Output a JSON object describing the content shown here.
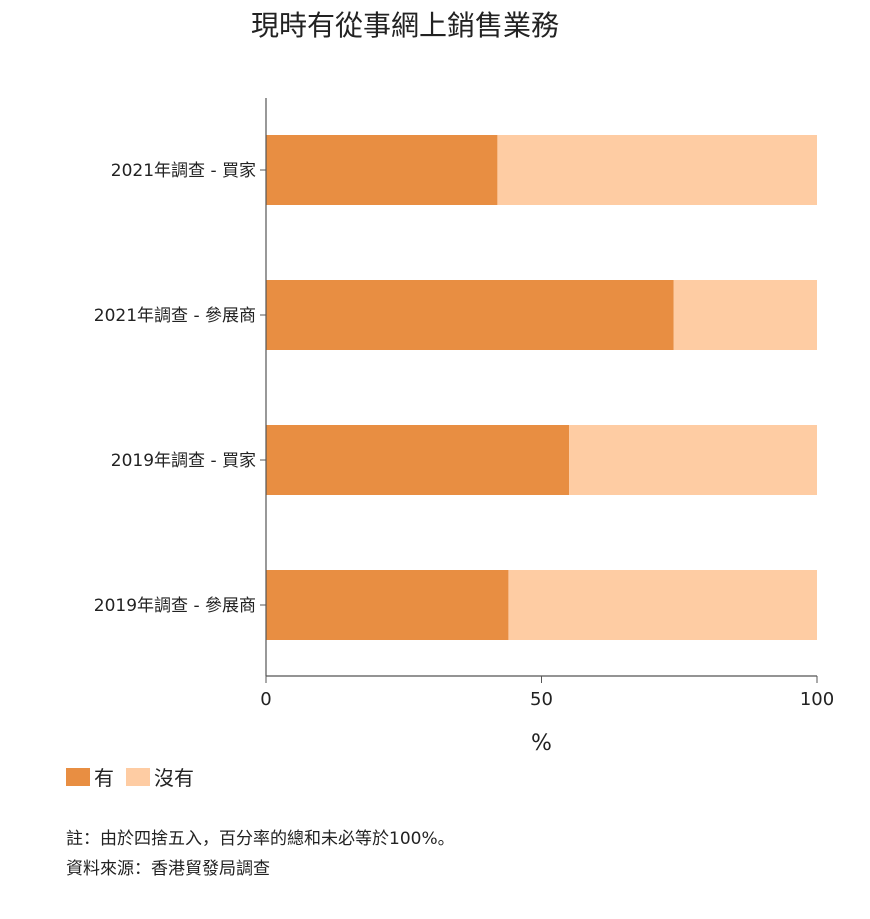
{
  "chart_data": {
    "type": "bar",
    "orientation": "horizontal",
    "stacked": true,
    "title": "現時有從事網上銷售業務",
    "xlabel": "%",
    "xlim": [
      0,
      100
    ],
    "xticks": [
      0,
      50,
      100
    ],
    "categories": [
      "2021年調查 - 買家",
      "2021年調查 - 參展商",
      "2019年調查 - 買家",
      "2019年調查 - 參展商"
    ],
    "series": [
      {
        "name": "有",
        "color": "#E88E42",
        "values": [
          42,
          74,
          55,
          44
        ]
      },
      {
        "name": "沒有",
        "color": "#FECCA3",
        "values": [
          58,
          26,
          45,
          56
        ]
      }
    ],
    "legend_position": "bottom-left"
  },
  "notes": {
    "note": "註：由於四捨五入，百分率的總和未必等於100%。",
    "source": "資料來源：香港貿發局調查"
  }
}
